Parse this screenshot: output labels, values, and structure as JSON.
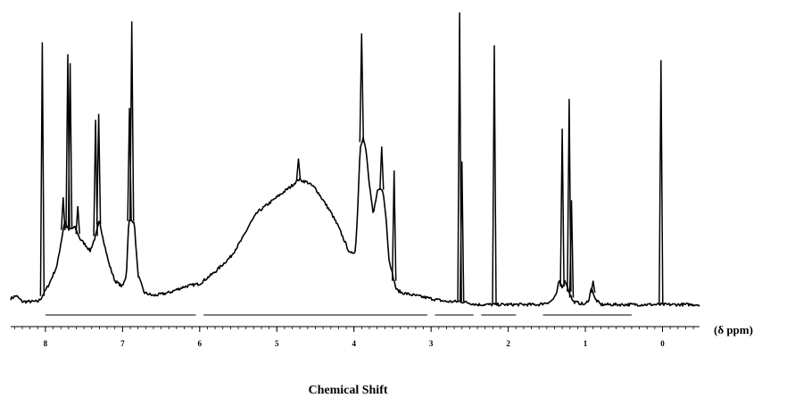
{
  "chart_data": {
    "type": "line",
    "title": "",
    "xlabel": "Chemical Shift",
    "unit_label": "(δ ppm)",
    "ylabel": "",
    "x_reversed": true,
    "xlim": [
      8.45,
      -0.48
    ],
    "ylim": [
      0,
      1
    ],
    "grid": false,
    "legend": "none",
    "colors": {
      "line": "#000000",
      "axis": "#000000",
      "background": "#ffffff"
    },
    "x_ticks": [
      {
        "value": 8,
        "label": "8"
      },
      {
        "value": 7,
        "label": "7"
      },
      {
        "value": 6,
        "label": "6"
      },
      {
        "value": 5,
        "label": "5"
      },
      {
        "value": 4,
        "label": "4"
      },
      {
        "value": 3,
        "label": "3"
      },
      {
        "value": 2,
        "label": "2"
      },
      {
        "value": 1,
        "label": "1"
      },
      {
        "value": 0,
        "label": "0"
      }
    ],
    "minor_tick_step": 0.1,
    "series": [
      {
        "role": "spectrum",
        "baseline_points": [
          [
            8.45,
            0.04
          ],
          [
            8.38,
            0.05
          ],
          [
            8.3,
            0.03
          ],
          [
            8.2,
            0.03
          ],
          [
            8.1,
            0.03
          ],
          [
            8.06,
            0.04
          ],
          [
            7.95,
            0.09
          ],
          [
            7.85,
            0.15
          ],
          [
            7.75,
            0.3
          ],
          [
            7.7,
            0.27
          ],
          [
            7.62,
            0.28
          ],
          [
            7.55,
            0.24
          ],
          [
            7.48,
            0.22
          ],
          [
            7.42,
            0.2
          ],
          [
            7.35,
            0.25
          ],
          [
            7.3,
            0.3
          ],
          [
            7.25,
            0.24
          ],
          [
            7.18,
            0.16
          ],
          [
            7.1,
            0.1
          ],
          [
            7.0,
            0.08
          ],
          [
            6.95,
            0.12
          ],
          [
            6.92,
            0.3
          ],
          [
            6.85,
            0.3
          ],
          [
            6.8,
            0.12
          ],
          [
            6.72,
            0.06
          ],
          [
            6.6,
            0.05
          ],
          [
            6.4,
            0.06
          ],
          [
            6.2,
            0.08
          ],
          [
            6.0,
            0.09
          ],
          [
            5.8,
            0.13
          ],
          [
            5.6,
            0.18
          ],
          [
            5.45,
            0.24
          ],
          [
            5.35,
            0.29
          ],
          [
            5.25,
            0.33
          ],
          [
            5.1,
            0.36
          ],
          [
            4.95,
            0.39
          ],
          [
            4.8,
            0.42
          ],
          [
            4.72,
            0.44
          ],
          [
            4.6,
            0.43
          ],
          [
            4.5,
            0.41
          ],
          [
            4.4,
            0.37
          ],
          [
            4.3,
            0.33
          ],
          [
            4.2,
            0.28
          ],
          [
            4.1,
            0.22
          ],
          [
            4.05,
            0.19
          ],
          [
            3.98,
            0.2
          ],
          [
            3.95,
            0.35
          ],
          [
            3.92,
            0.55
          ],
          [
            3.88,
            0.58
          ],
          [
            3.84,
            0.53
          ],
          [
            3.8,
            0.42
          ],
          [
            3.75,
            0.32
          ],
          [
            3.7,
            0.4
          ],
          [
            3.66,
            0.41
          ],
          [
            3.62,
            0.4
          ],
          [
            3.58,
            0.3
          ],
          [
            3.55,
            0.18
          ],
          [
            3.5,
            0.12
          ],
          [
            3.45,
            0.07
          ],
          [
            3.38,
            0.06
          ],
          [
            3.2,
            0.05
          ],
          [
            3.0,
            0.04
          ],
          [
            2.8,
            0.03
          ],
          [
            2.6,
            0.03
          ],
          [
            2.4,
            0.02
          ],
          [
            2.2,
            0.02
          ],
          [
            2.0,
            0.02
          ],
          [
            1.8,
            0.02
          ],
          [
            1.6,
            0.02
          ],
          [
            1.45,
            0.03
          ],
          [
            1.38,
            0.05
          ],
          [
            1.34,
            0.1
          ],
          [
            1.3,
            0.08
          ],
          [
            1.26,
            0.1
          ],
          [
            1.22,
            0.07
          ],
          [
            1.16,
            0.03
          ],
          [
            1.0,
            0.02
          ],
          [
            0.95,
            0.04
          ],
          [
            0.92,
            0.08
          ],
          [
            0.88,
            0.04
          ],
          [
            0.8,
            0.02
          ],
          [
            0.6,
            0.02
          ],
          [
            0.4,
            0.02
          ],
          [
            0.2,
            0.02
          ],
          [
            0.0,
            0.02
          ],
          [
            -0.2,
            0.02
          ],
          [
            -0.48,
            0.02
          ]
        ],
        "peaks": [
          {
            "x": 8.04,
            "y": 0.9
          },
          {
            "x": 7.77,
            "y": 0.38
          },
          {
            "x": 7.71,
            "y": 0.86
          },
          {
            "x": 7.68,
            "y": 0.83
          },
          {
            "x": 7.58,
            "y": 0.35
          },
          {
            "x": 7.35,
            "y": 0.64
          },
          {
            "x": 7.31,
            "y": 0.66
          },
          {
            "x": 6.91,
            "y": 0.68
          },
          {
            "x": 6.88,
            "y": 0.97
          },
          {
            "x": 4.72,
            "y": 0.51
          },
          {
            "x": 3.9,
            "y": 0.93
          },
          {
            "x": 3.64,
            "y": 0.55
          },
          {
            "x": 3.48,
            "y": 0.47
          },
          {
            "x": 2.63,
            "y": 1.0
          },
          {
            "x": 2.6,
            "y": 0.5
          },
          {
            "x": 2.18,
            "y": 0.89
          },
          {
            "x": 1.3,
            "y": 0.61
          },
          {
            "x": 1.21,
            "y": 0.71
          },
          {
            "x": 1.18,
            "y": 0.37
          },
          {
            "x": 0.9,
            "y": 0.1
          },
          {
            "x": 0.02,
            "y": 0.84
          }
        ]
      }
    ],
    "integration_segments": [
      {
        "from": 8.0,
        "to": 6.05
      },
      {
        "from": 5.95,
        "to": 3.05
      },
      {
        "from": 2.95,
        "to": 2.45
      },
      {
        "from": 2.35,
        "to": 1.9
      },
      {
        "from": 1.55,
        "to": 0.4
      }
    ]
  }
}
